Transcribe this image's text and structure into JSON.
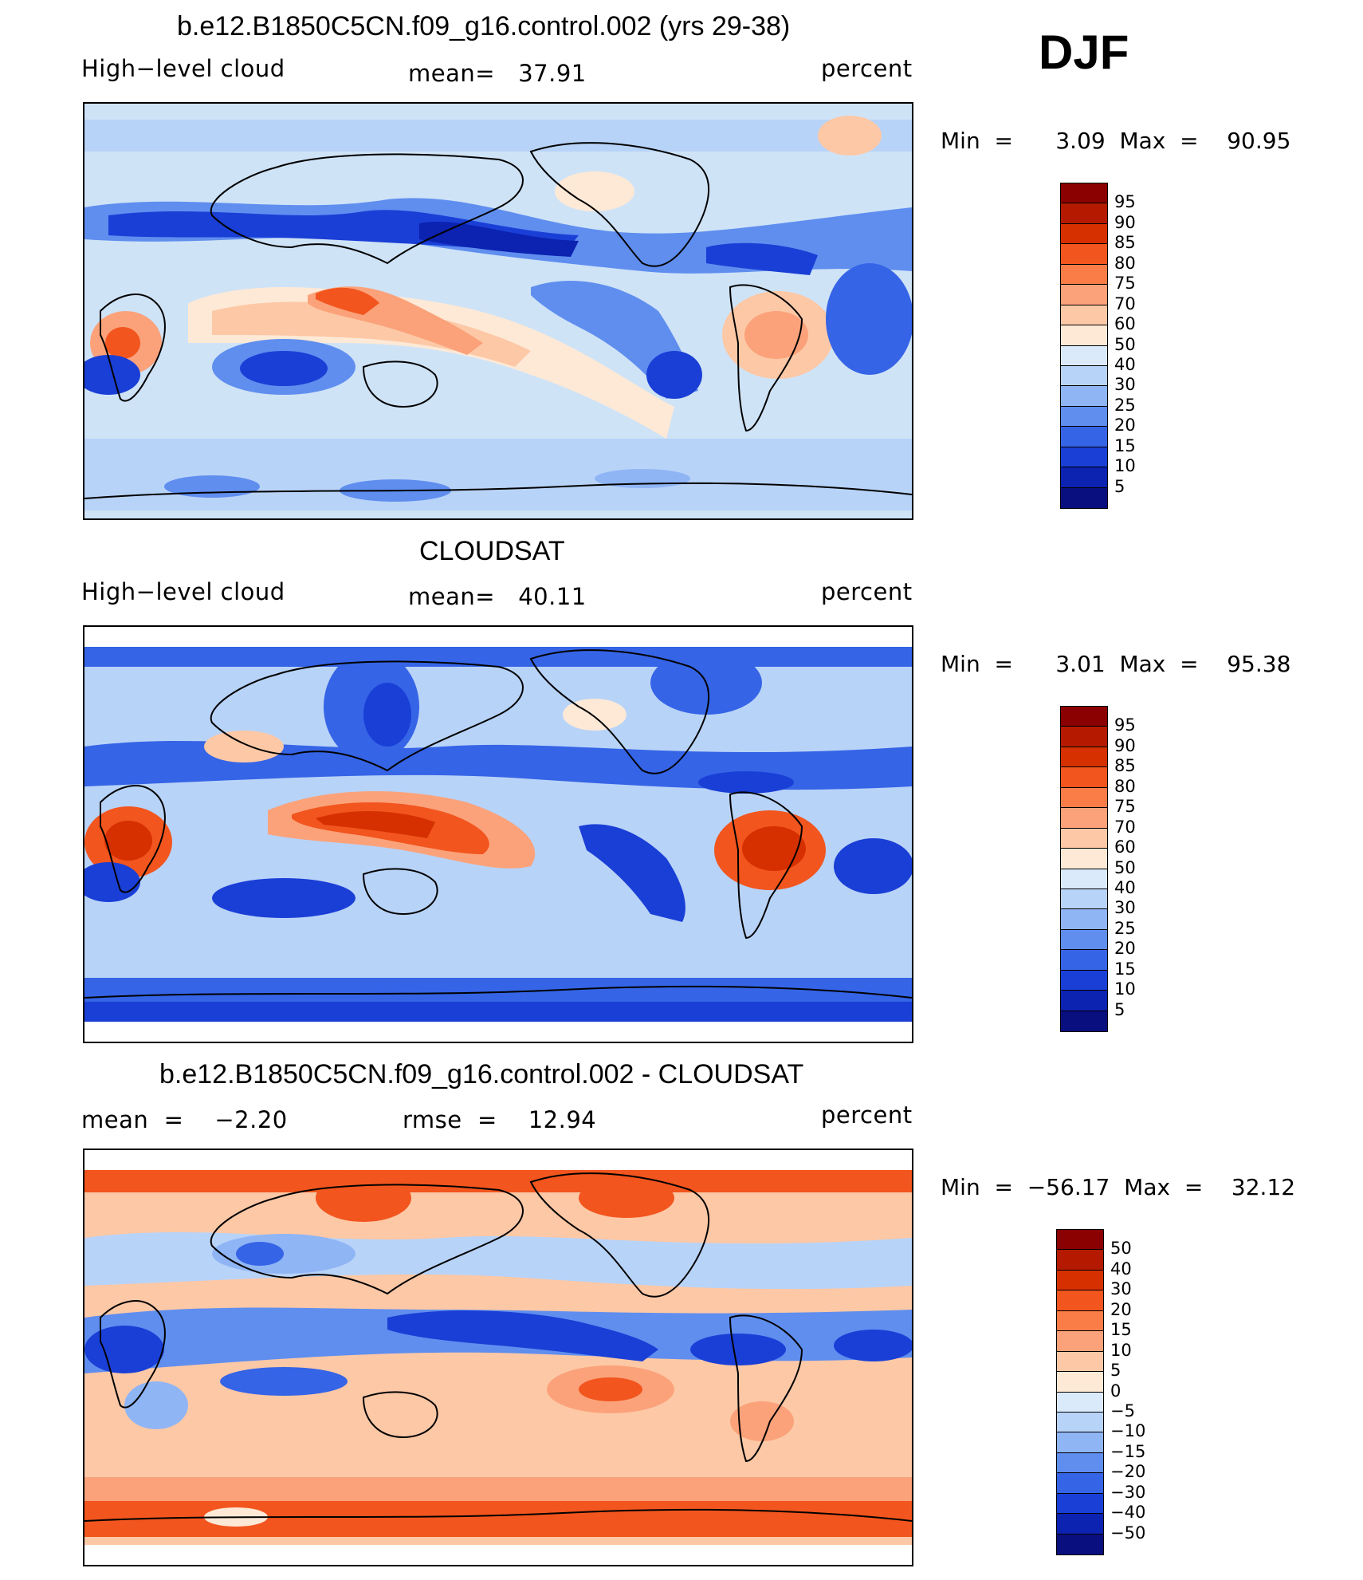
{
  "figure": {
    "season": "DJF",
    "panels": [
      {
        "title": "b.e12.B1850C5CN.f09_g16.control.002 (yrs 29-38)",
        "left_label": "High−level cloud",
        "center_label": "mean=   37.91",
        "units": "percent",
        "stats": "Min  =      3.09  Max  =    90.95",
        "colorbar_labels": [
          "95",
          "90",
          "85",
          "80",
          "75",
          "70",
          "60",
          "50",
          "40",
          "30",
          "25",
          "20",
          "15",
          "10",
          "5"
        ],
        "colorbar_colors": [
          "#8b0000",
          "#b51a00",
          "#d63000",
          "#f2551e",
          "#fa7d48",
          "#fba27a",
          "#fdc8a6",
          "#fde9d6",
          "#dbeafb",
          "#b8d3f8",
          "#8fb5f5",
          "#5f8eef",
          "#3564e6",
          "#1a3fd6",
          "#0c22b0",
          "#0a0f80"
        ]
      },
      {
        "title": "CLOUDSAT",
        "left_label": "High−level cloud",
        "center_label": "mean=   40.11",
        "units": "percent",
        "stats": "Min  =      3.01  Max  =    95.38",
        "colorbar_labels": [
          "95",
          "90",
          "85",
          "80",
          "75",
          "70",
          "60",
          "50",
          "40",
          "30",
          "25",
          "20",
          "15",
          "10",
          "5"
        ],
        "colorbar_colors": [
          "#8b0000",
          "#b51a00",
          "#d63000",
          "#f2551e",
          "#fa7d48",
          "#fba27a",
          "#fdc8a6",
          "#fde9d6",
          "#dbeafb",
          "#b8d3f8",
          "#8fb5f5",
          "#5f8eef",
          "#3564e6",
          "#1a3fd6",
          "#0c22b0",
          "#0a0f80"
        ]
      },
      {
        "title": "b.e12.B1850C5CN.f09_g16.control.002 - CLOUDSAT",
        "left_label": "mean  =    −2.20",
        "center_label": "rmse  =    12.94",
        "units": "percent",
        "stats": "Min  =  −56.17  Max  =    32.12",
        "colorbar_labels": [
          "50",
          "40",
          "30",
          "20",
          "15",
          "10",
          "5",
          "0",
          "−5",
          "−10",
          "−15",
          "−20",
          "−30",
          "−40",
          "−50"
        ],
        "colorbar_colors": [
          "#8b0000",
          "#b51a00",
          "#d63000",
          "#f2551e",
          "#fa7d48",
          "#fba27a",
          "#fdc8a6",
          "#fde9d6",
          "#dbeafb",
          "#b8d3f8",
          "#8fb5f5",
          "#5f8eef",
          "#3564e6",
          "#1a3fd6",
          "#0c22b0",
          "#0a0f80"
        ]
      }
    ]
  }
}
